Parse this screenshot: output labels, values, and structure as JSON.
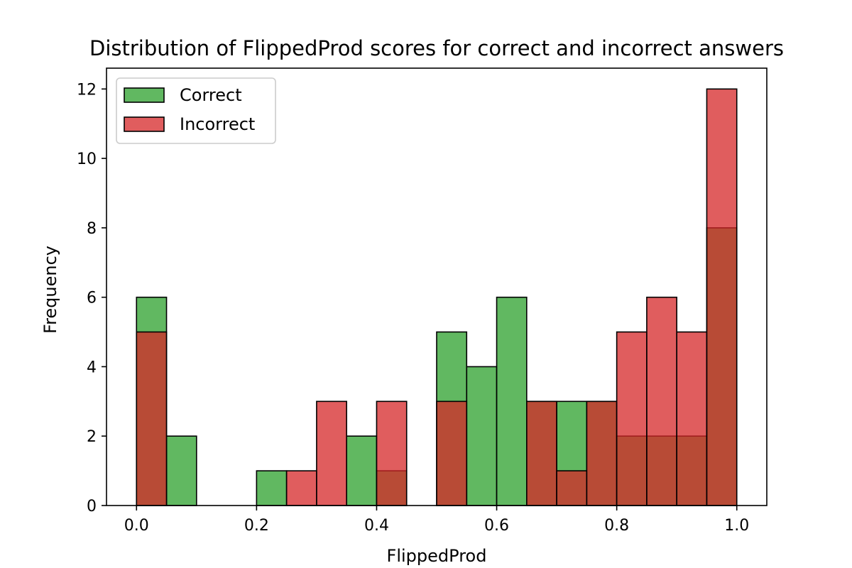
{
  "chart_data": {
    "type": "histogram",
    "title": "Distribution of FlippedProd scores for correct and incorrect answers",
    "xlabel": "FlippedProd",
    "ylabel": "Frequency",
    "xlim": [
      -0.05,
      1.05
    ],
    "ylim": [
      0,
      12.6
    ],
    "x_ticks": [
      0.0,
      0.2,
      0.4,
      0.6,
      0.8,
      1.0
    ],
    "x_tick_labels": [
      "0.0",
      "0.2",
      "0.4",
      "0.6",
      "0.8",
      "1.0"
    ],
    "y_ticks": [
      0,
      2,
      4,
      6,
      8,
      10,
      12
    ],
    "y_tick_labels": [
      "0",
      "2",
      "4",
      "6",
      "8",
      "10",
      "12"
    ],
    "bin_edges": [
      0.0,
      0.05,
      0.1,
      0.15,
      0.2,
      0.25,
      0.3,
      0.35,
      0.4,
      0.45,
      0.5,
      0.55,
      0.6,
      0.65,
      0.7,
      0.75,
      0.8,
      0.85,
      0.9,
      0.95,
      1.0
    ],
    "series": [
      {
        "name": "Correct",
        "color": "#2ca02c",
        "alpha": 0.75,
        "values": [
          6,
          2,
          0,
          0,
          1,
          0,
          0,
          2,
          1,
          0,
          5,
          4,
          6,
          3,
          3,
          3,
          2,
          2,
          2,
          8
        ]
      },
      {
        "name": "Incorrect",
        "color": "#d62728",
        "alpha": 0.75,
        "values": [
          5,
          0,
          0,
          0,
          0,
          1,
          3,
          0,
          3,
          0,
          3,
          0,
          0,
          3,
          1,
          3,
          5,
          6,
          5,
          12
        ]
      }
    ],
    "legend_position": "top-left",
    "grid": false
  }
}
